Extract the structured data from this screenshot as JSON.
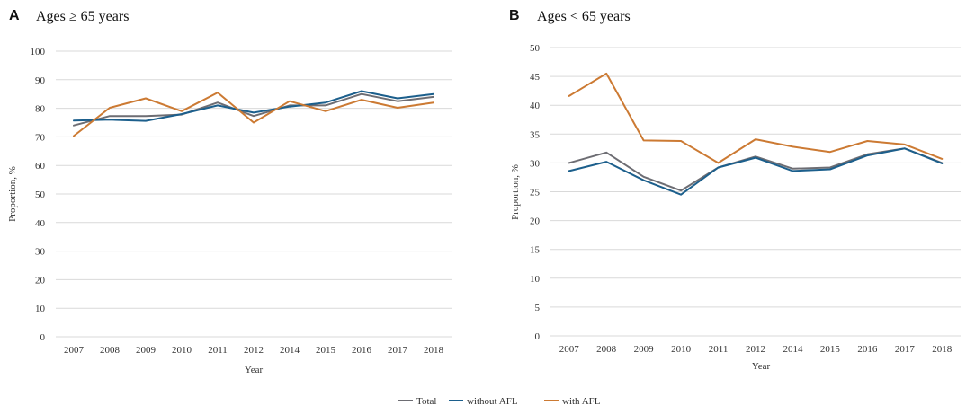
{
  "legend": {
    "items": [
      {
        "label": "Total",
        "color": "#6d6d73"
      },
      {
        "label": "without AFL",
        "color": "#1c5f8c"
      },
      {
        "label": "with AFL",
        "color": "#cc7a33"
      }
    ]
  },
  "chart_data": [
    {
      "type": "line",
      "panel": "A",
      "title": "Ages ≥ 65 years",
      "xlabel": "Year",
      "ylabel": "Proportion, %",
      "ylim": [
        0,
        100
      ],
      "yticks": [
        0,
        10,
        20,
        30,
        40,
        50,
        60,
        70,
        80,
        90,
        100
      ],
      "grid": true,
      "categories": [
        "2007",
        "2008",
        "2009",
        "2010",
        "2011",
        "2012",
        "2014",
        "2015",
        "2016",
        "2017",
        "2018"
      ],
      "series": [
        {
          "name": "Total",
          "color": "#6d6d73",
          "values": [
            74.0,
            77.3,
            77.3,
            77.8,
            82.0,
            77.3,
            81.0,
            81.0,
            85.0,
            82.5,
            84.0
          ]
        },
        {
          "name": "without AFL",
          "color": "#1c5f8c",
          "values": [
            75.7,
            76.0,
            75.6,
            78.0,
            81.0,
            78.5,
            80.6,
            82.0,
            86.0,
            83.5,
            85.0
          ]
        },
        {
          "name": "with AFL",
          "color": "#cc7a33",
          "values": [
            70.3,
            80.2,
            83.5,
            79.0,
            85.5,
            75.0,
            82.5,
            79.0,
            83.0,
            80.2,
            82.0
          ]
        }
      ]
    },
    {
      "type": "line",
      "panel": "B",
      "title": "Ages < 65 years",
      "xlabel": "Year",
      "ylabel": "Proportion, %",
      "ylim": [
        0,
        50
      ],
      "yticks": [
        0,
        5,
        10,
        15,
        20,
        25,
        30,
        35,
        40,
        45,
        50
      ],
      "grid": true,
      "categories": [
        "2007",
        "2008",
        "2009",
        "2010",
        "2011",
        "2012",
        "2014",
        "2015",
        "2016",
        "2017",
        "2018"
      ],
      "series": [
        {
          "name": "Total",
          "color": "#6d6d73",
          "values": [
            30.0,
            31.8,
            27.6,
            25.2,
            29.2,
            31.1,
            29.0,
            29.2,
            31.5,
            32.5,
            30.0
          ]
        },
        {
          "name": "without AFL",
          "color": "#1c5f8c",
          "values": [
            28.6,
            30.2,
            27.0,
            24.5,
            29.2,
            30.9,
            28.6,
            28.9,
            31.3,
            32.5,
            29.9
          ]
        },
        {
          "name": "with AFL",
          "color": "#cc7a33",
          "values": [
            41.6,
            45.5,
            33.9,
            33.8,
            30.0,
            34.1,
            32.8,
            31.9,
            33.8,
            33.2,
            30.7
          ]
        }
      ]
    }
  ]
}
